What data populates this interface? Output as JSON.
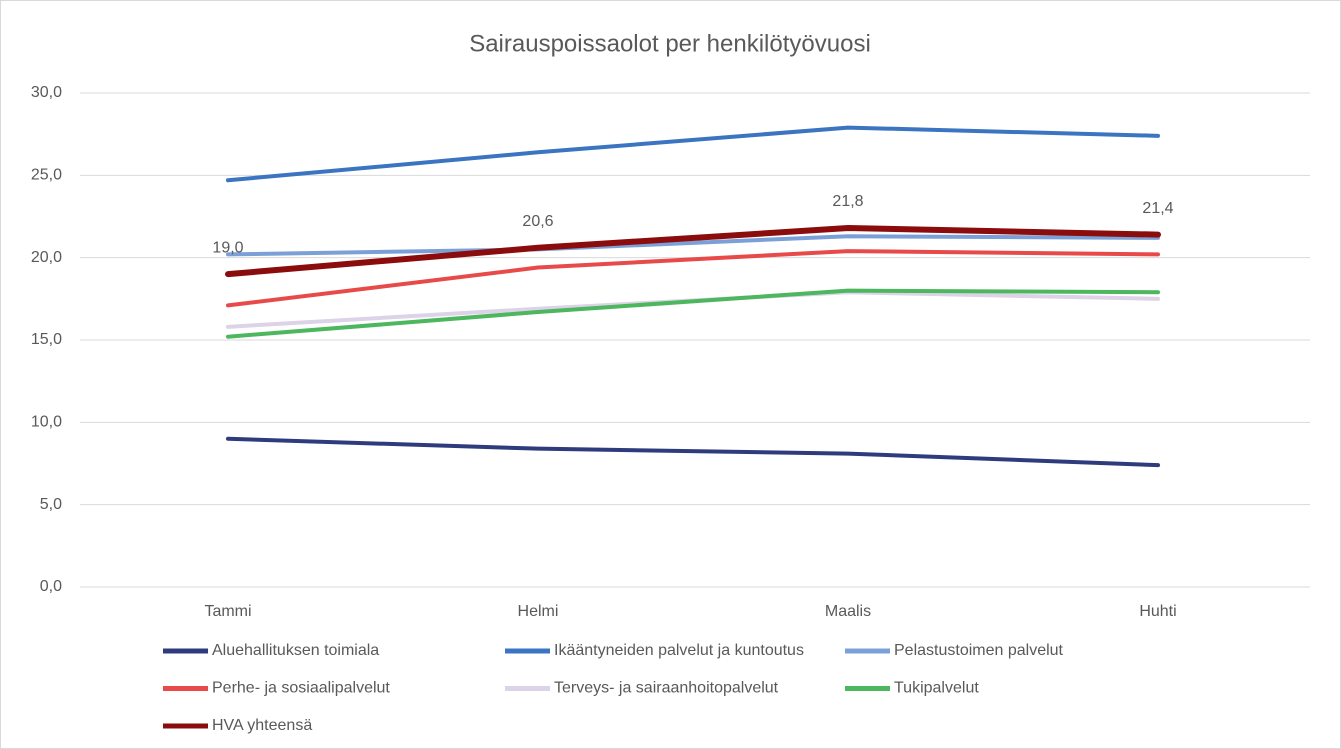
{
  "chart_data": {
    "type": "line",
    "title": "Sairauspoissaolot per henkilötyövuosi",
    "categories": [
      "Tammi",
      "Helmi",
      "Maalis",
      "Huhti"
    ],
    "series": [
      {
        "name": "Aluehallituksen toimiala",
        "color": "#2e3b7c",
        "values": [
          9.0,
          8.4,
          8.1,
          7.4
        ]
      },
      {
        "name": "Ikääntyneiden palvelut ja kuntoutus",
        "color": "#3b74c0",
        "values": [
          24.7,
          26.4,
          27.9,
          27.4
        ]
      },
      {
        "name": "Pelastustoimen palvelut",
        "color": "#7ba0d8",
        "values": [
          20.2,
          20.5,
          21.3,
          21.2
        ]
      },
      {
        "name": "Perhe- ja sosiaalipalvelut",
        "color": "#e84a4a",
        "values": [
          17.1,
          19.4,
          20.4,
          20.2
        ]
      },
      {
        "name": "Terveys- ja sairaanhoitopalvelut",
        "color": "#ddd3e8",
        "values": [
          15.8,
          16.9,
          17.9,
          17.5
        ]
      },
      {
        "name": "Tukipalvelut",
        "color": "#4cb75e",
        "values": [
          15.2,
          16.7,
          18.0,
          17.9
        ]
      },
      {
        "name": "HVA yhteensä",
        "color": "#8b0c0c",
        "values": [
          19.0,
          20.6,
          21.8,
          21.4
        ],
        "value_labels": [
          "19,0",
          "20,6",
          "21,8",
          "21,4"
        ]
      }
    ],
    "ylim": [
      0,
      30
    ],
    "yticks": [
      {
        "value": 0,
        "label": "0,0"
      },
      {
        "value": 5,
        "label": "5,0"
      },
      {
        "value": 10,
        "label": "10,0"
      },
      {
        "value": 15,
        "label": "15,0"
      },
      {
        "value": 20,
        "label": "20,0"
      },
      {
        "value": 25,
        "label": "25,0"
      },
      {
        "value": 30,
        "label": "30,0"
      }
    ],
    "grid": true
  }
}
